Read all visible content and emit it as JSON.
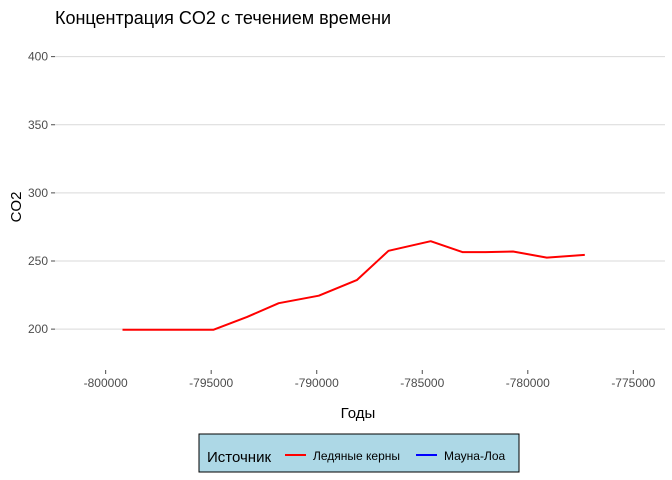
{
  "chart_data": {
    "type": "line",
    "title": "Концентрация CO2 с течением времени",
    "xlabel": "Годы",
    "ylabel": "CO2",
    "xlim": [
      -802400,
      -773500
    ],
    "ylim": [
      170,
      410
    ],
    "xticks": [
      -800000,
      -795000,
      -790000,
      -785000,
      -780000,
      -775000
    ],
    "xtick_labels": [
      "-800000",
      "-795000",
      "-790000",
      "-785000",
      "-780000",
      "-775000"
    ],
    "yticks": [
      200,
      250,
      300,
      350,
      400
    ],
    "ytick_labels": [
      "200",
      "250",
      "300",
      "350",
      "400"
    ],
    "grid": "horizontal major",
    "legend": {
      "title": "Источник",
      "position": "bottom",
      "background": "#add8e6",
      "entries": [
        {
          "label": "Ледяные керны",
          "color": "#ff0000"
        },
        {
          "label": "Мауна-Лоа",
          "color": "#0000ff"
        }
      ]
    },
    "series": [
      {
        "name": "Ледяные керны",
        "color": "#ff0000",
        "x": [
          -799200,
          -797500,
          -795900,
          -794900,
          -793300,
          -791800,
          -789900,
          -788100,
          -786600,
          -784600,
          -783100,
          -782000,
          -780700,
          -779100,
          -777300
        ],
        "y": [
          199.5,
          199.5,
          199.5,
          199.5,
          209,
          219,
          224.5,
          236,
          257.5,
          264.5,
          256.5,
          256.5,
          257,
          252.5,
          254.5
        ]
      },
      {
        "name": "Мауна-Лоа",
        "color": "#0000ff",
        "x": [],
        "y": []
      }
    ]
  }
}
